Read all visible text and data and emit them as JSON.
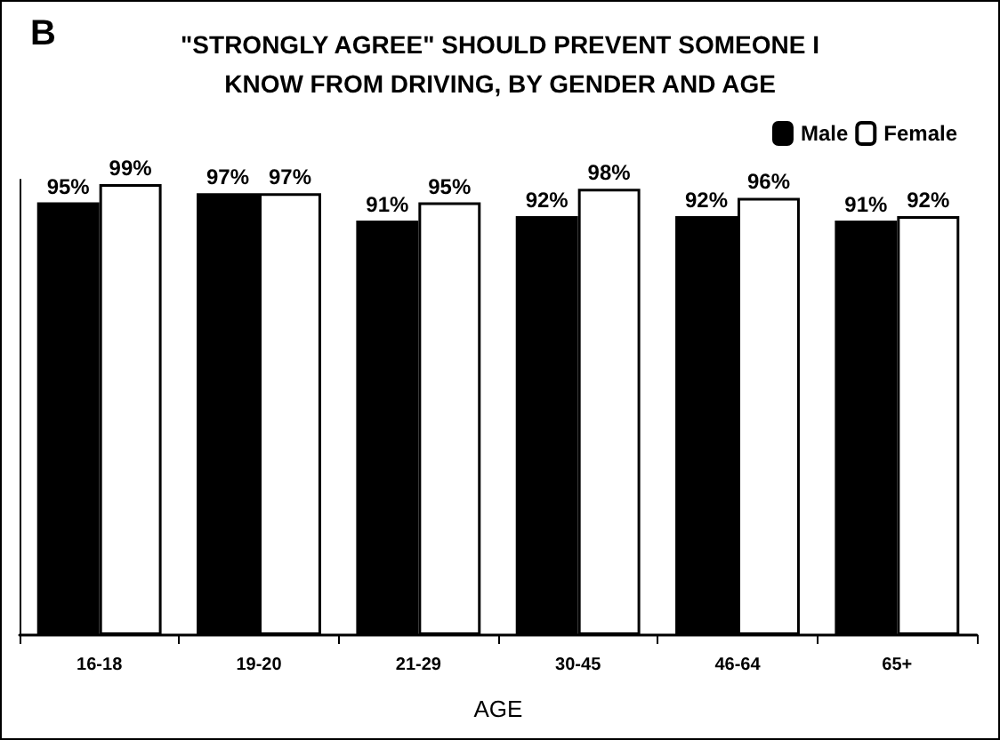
{
  "chart_data": {
    "type": "bar",
    "title": "\"STRONGLY AGREE\" SHOULD PREVENT SOMEONE I\nKNOW FROM DRIVING, BY GENDER AND AGE",
    "annotations": [
      "B"
    ],
    "xlabel": "AGE",
    "categories": [
      "16-18",
      "19-20",
      "21-29",
      "30-45",
      "46-64",
      "65+"
    ],
    "series": [
      {
        "name": "Male",
        "color": "#000000",
        "values": [
          95,
          97,
          91,
          92,
          92,
          91
        ],
        "value_labels": [
          "95%",
          "97%",
          "91%",
          "92%",
          "92%",
          "91%"
        ]
      },
      {
        "name": "Female",
        "color": "#ffffff",
        "values": [
          99,
          97,
          95,
          98,
          96,
          92
        ],
        "value_labels": [
          "99%",
          "97%",
          "95%",
          "98%",
          "96%",
          "92%"
        ]
      }
    ],
    "legend": "top right",
    "grid": false,
    "relative": false
  }
}
